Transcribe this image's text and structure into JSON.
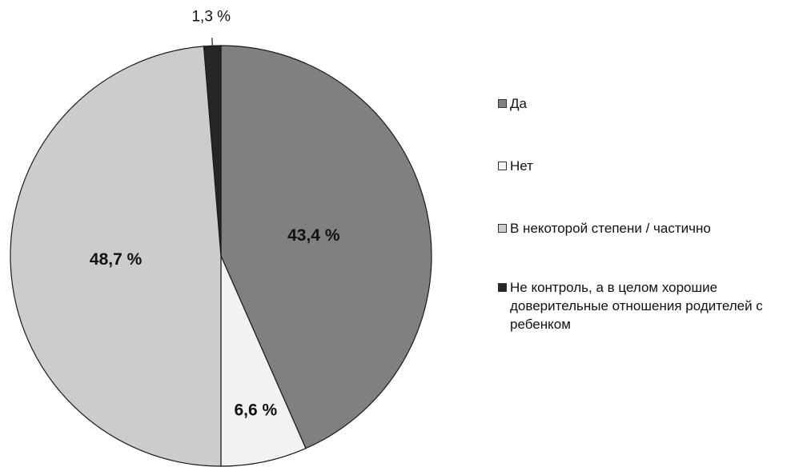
{
  "chart_data": {
    "type": "pie",
    "slices": [
      {
        "label": "Да",
        "value": 43.4,
        "value_label": "43,4 %",
        "color": "#808080"
      },
      {
        "label": "Нет",
        "value": 6.6,
        "value_label": "6,6 %",
        "color": "#f2f2f2"
      },
      {
        "label": "В некоторой степени / частично",
        "value": 48.7,
        "value_label": "48,7 %",
        "color": "#cccccc"
      },
      {
        "label": "Не контроль, а в целом хорошие доверительные отношения родителей с ребенком",
        "value": 1.3,
        "value_label": "1,3 %",
        "color": "#262626"
      }
    ],
    "legend_position": "right",
    "start_angle": "12 o'clock, clockwise"
  }
}
